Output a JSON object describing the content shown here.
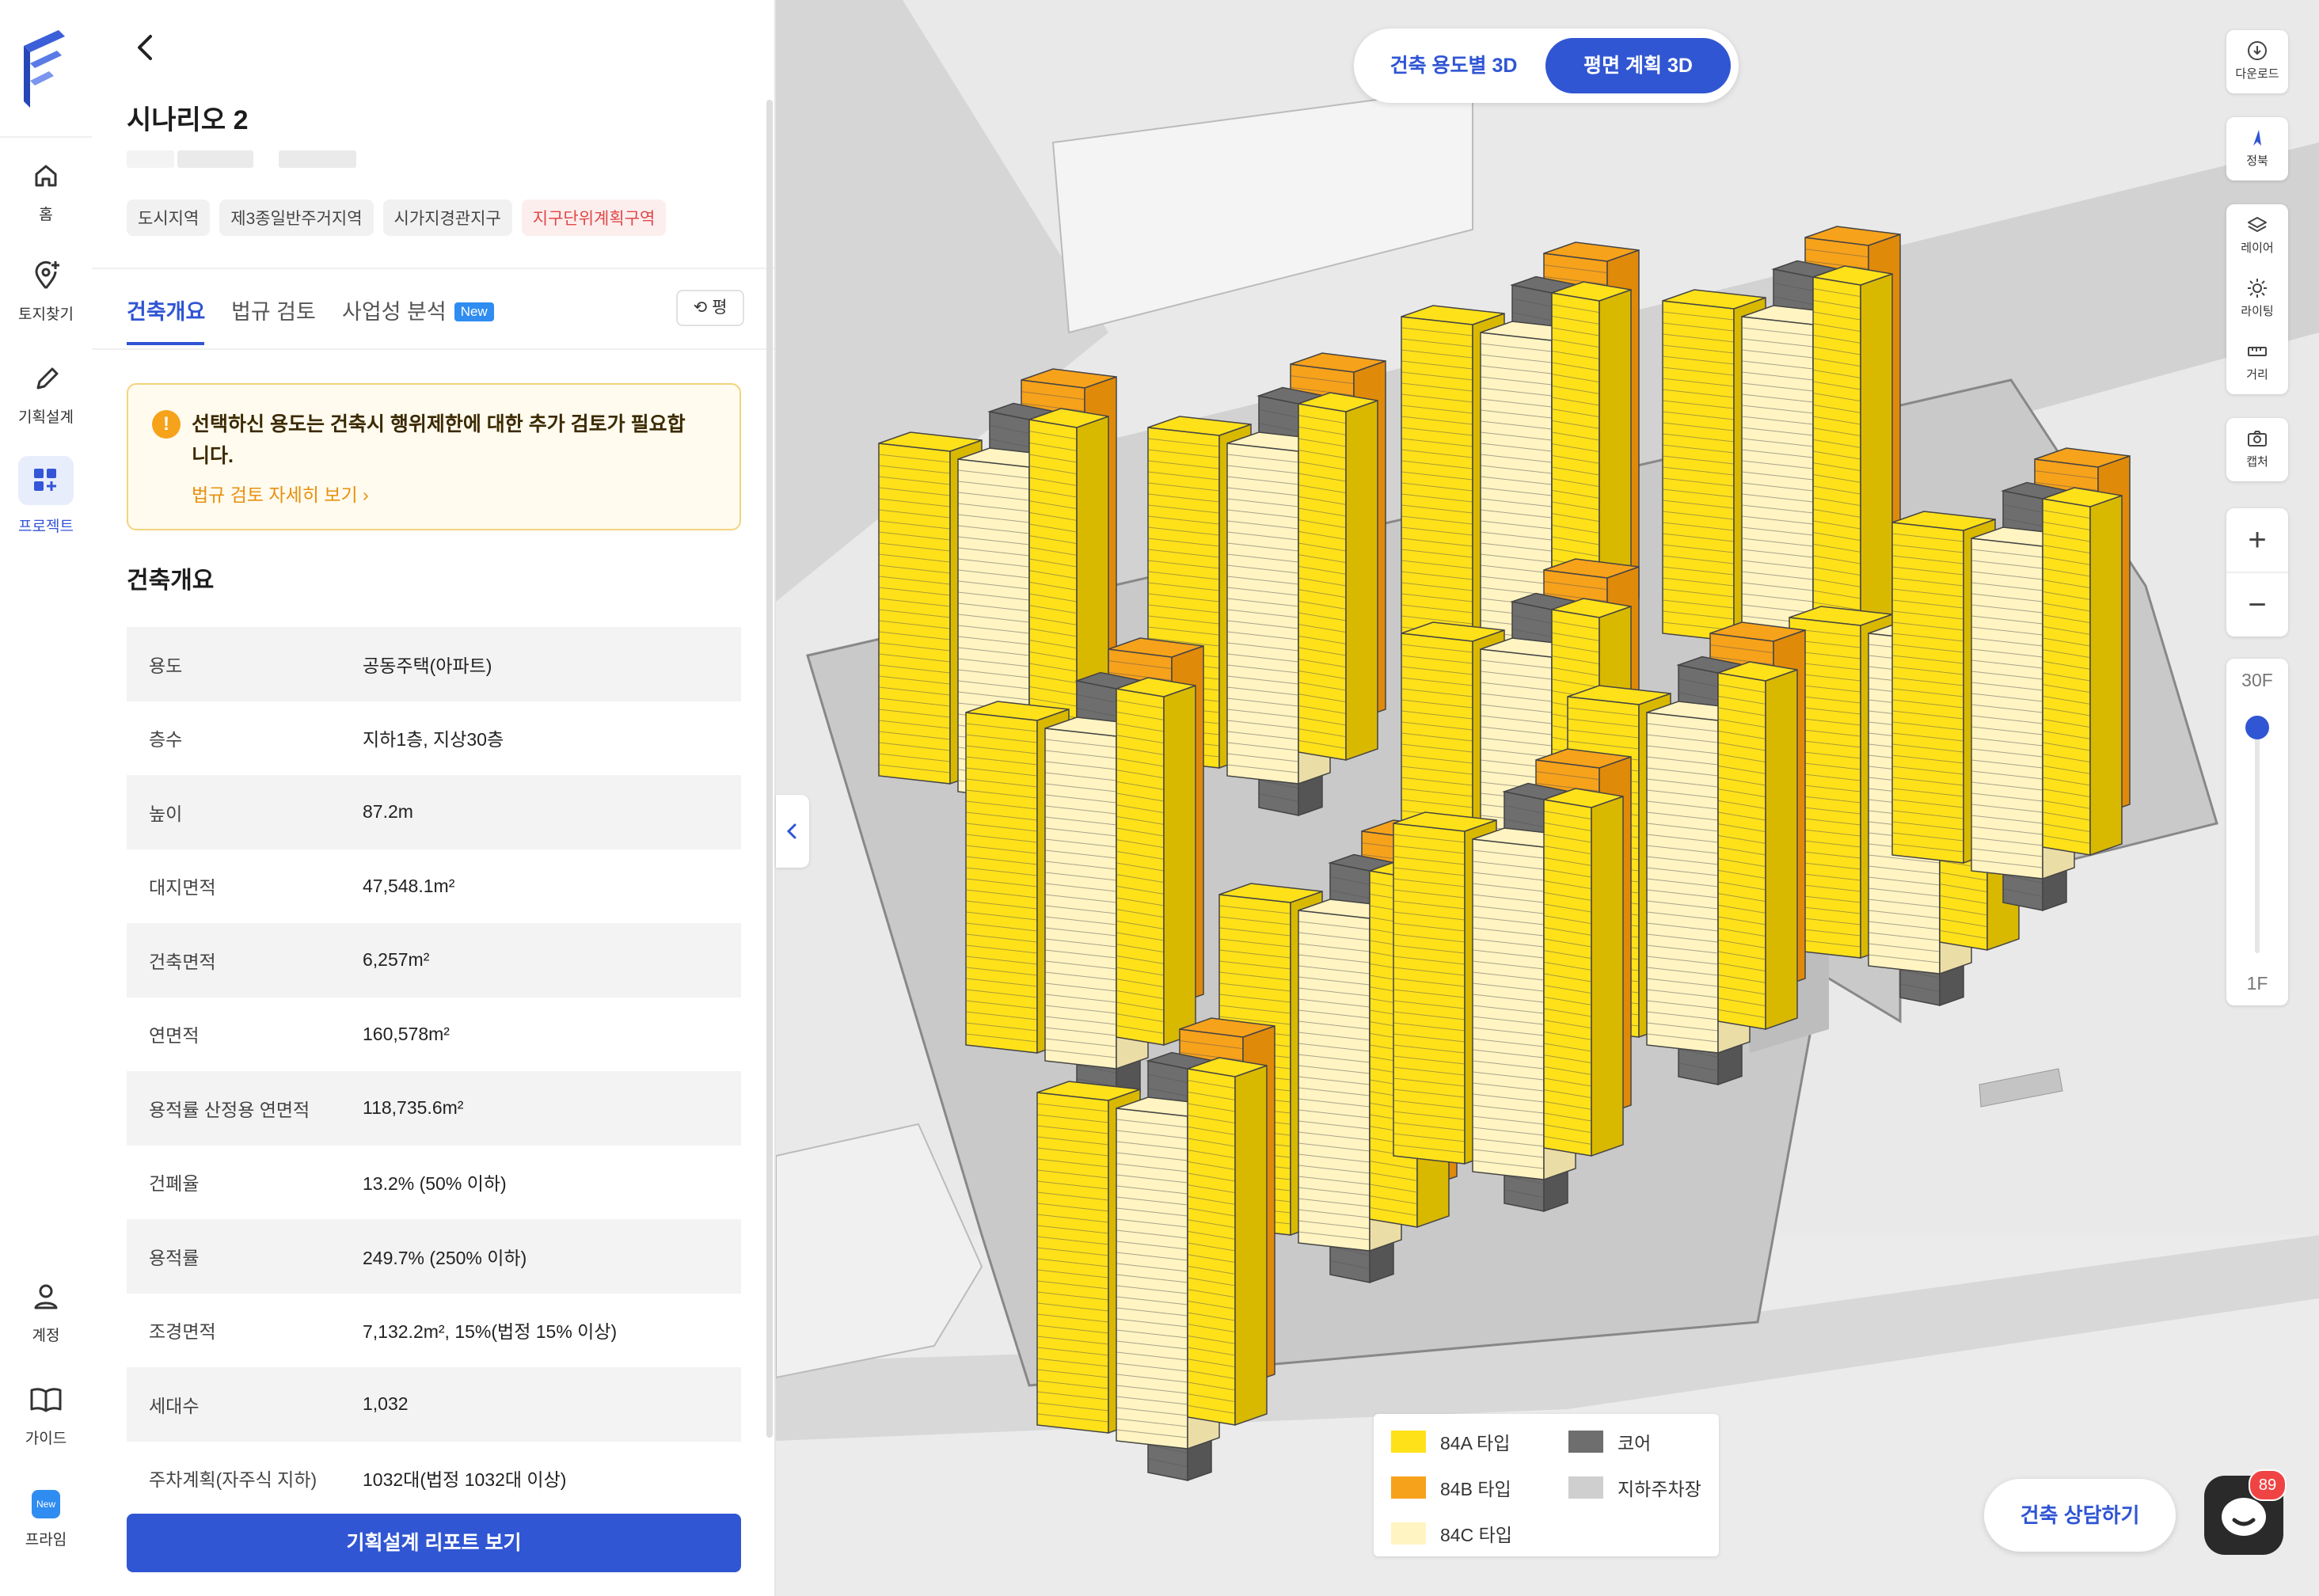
{
  "nav": {
    "items": [
      {
        "label": "홈",
        "icon": "home-icon"
      },
      {
        "label": "토지찾기",
        "icon": "location-plus-icon"
      },
      {
        "label": "기획설계",
        "icon": "pencil-icon"
      },
      {
        "label": "프로젝트",
        "icon": "grid-plus-icon",
        "active": true
      }
    ],
    "bottom": [
      {
        "label": "계정",
        "icon": "user-icon"
      },
      {
        "label": "가이드",
        "icon": "book-icon"
      },
      {
        "label": "프라임",
        "badge": "New"
      }
    ]
  },
  "panel": {
    "title": "시나리오 2",
    "tags": [
      "도시지역",
      "제3종일반주거지역",
      "시가지경관지구",
      "지구단위계획구역"
    ],
    "tabs": [
      {
        "label": "건축개요",
        "active": true
      },
      {
        "label": "법규 검토"
      },
      {
        "label": "사업성 분석",
        "badge": "New"
      }
    ],
    "unit_button": "평",
    "warning": {
      "text": "선택하신 용도는 건축시 행위제한에 대한 추가 검토가 필요합니다.",
      "link": "법규 검토 자세히 보기"
    },
    "section_title": "건축개요",
    "rows": [
      {
        "key": "용도",
        "value": "공동주택(아파트)"
      },
      {
        "key": "층수",
        "value": "지하1층, 지상30층"
      },
      {
        "key": "높이",
        "value": "87.2m"
      },
      {
        "key": "대지면적",
        "value": "47,548.1m²"
      },
      {
        "key": "건축면적",
        "value": "6,257m²"
      },
      {
        "key": "연면적",
        "value": "160,578m²"
      },
      {
        "key": "용적률 산정용 연면적",
        "value": "118,735.6m²"
      },
      {
        "key": "건폐율",
        "value": "13.2% (50% 이하)"
      },
      {
        "key": "용적률",
        "value": "249.7% (250% 이하)"
      },
      {
        "key": "조경면적",
        "value": "7,132.2m², 15%(법정 15% 이상)"
      },
      {
        "key": "세대수",
        "value": "1,032"
      },
      {
        "key": "주차계획(자주식 지하)",
        "value": "1032대(법정 1032대 이상)"
      }
    ],
    "cta": "기획설계 리포트 보기"
  },
  "map": {
    "toggle": {
      "option1": "건축 용도별 3D",
      "option2": "평면 계획 3D",
      "selected": "평면 계획 3D"
    },
    "tools": [
      {
        "label": "다운로드",
        "icon": "download-icon"
      },
      {
        "label": "정북",
        "icon": "north-arrow-icon"
      },
      {
        "label": "레이어",
        "icon": "layers-icon"
      },
      {
        "label": "라이팅",
        "icon": "sun-icon"
      },
      {
        "label": "거리",
        "icon": "ruler-icon"
      },
      {
        "label": "캡처",
        "icon": "camera-icon"
      }
    ],
    "floor_slider": {
      "top": "30F",
      "bottom": "1F",
      "current_fraction": 1.0
    },
    "legend": [
      {
        "label": "84A 타입",
        "color": "#FFE11A"
      },
      {
        "label": "84B 타입",
        "color": "#F7A21B"
      },
      {
        "label": "84C 타입",
        "color": "#FFF4C2"
      },
      {
        "label": "코어",
        "color": "#6E6E6E"
      },
      {
        "label": "지하주차장",
        "color": "#CFCFCF"
      }
    ],
    "consult_button": "건축 상담하기",
    "chat_badge": "89"
  }
}
